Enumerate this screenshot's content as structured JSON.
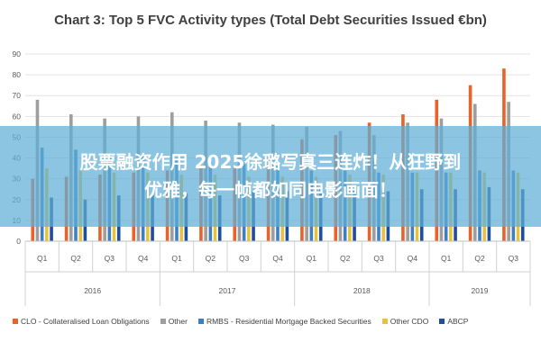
{
  "chart_data": {
    "type": "bar",
    "title": "Chart 3: Top 5 FVC Activity types (Total Debt Securities Issued €bn)",
    "quarters": [
      "Q1",
      "Q2",
      "Q3",
      "Q4",
      "Q1",
      "Q2",
      "Q3",
      "Q4",
      "Q1",
      "Q2",
      "Q3",
      "Q4",
      "Q1",
      "Q2",
      "Q3"
    ],
    "years": [
      {
        "label": "2016",
        "count": 4
      },
      {
        "label": "2017",
        "count": 4
      },
      {
        "label": "2018",
        "count": 4
      },
      {
        "label": "2019",
        "count": 3
      }
    ],
    "ylim": [
      0,
      90
    ],
    "yticks": [
      0,
      10,
      20,
      30,
      40,
      50,
      60,
      70,
      80,
      90
    ],
    "grid": true,
    "legend_position": "bottom",
    "series": [
      {
        "name": "CLO - Collateralised Loan Obligations",
        "color": "#E8622A",
        "values": [
          30,
          31,
          32,
          33,
          34,
          35,
          36,
          37,
          49,
          51,
          57,
          61,
          68,
          75,
          83
        ]
      },
      {
        "name": "Other",
        "color": "#9E9E9E",
        "values": [
          68,
          61,
          59,
          60,
          62,
          58,
          57,
          56,
          55,
          53,
          51,
          57,
          59,
          66,
          67
        ]
      },
      {
        "name": "RMBS - Residential Mortgage Backed Securities",
        "color": "#3D7FC4",
        "values": [
          45,
          44,
          42,
          42,
          40,
          38,
          37,
          36,
          34,
          34,
          33,
          33,
          33,
          34,
          34
        ]
      },
      {
        "name": "Other CDO",
        "color": "#E9C23A",
        "values": [
          35,
          34,
          33,
          33,
          32,
          32,
          31,
          31,
          31,
          32,
          32,
          33,
          33,
          33,
          33
        ]
      },
      {
        "name": "ABCP",
        "color": "#1F4E9A",
        "values": [
          21,
          20,
          22,
          22,
          23,
          22,
          24,
          24,
          25,
          25,
          24,
          25,
          25,
          26,
          25
        ]
      }
    ]
  },
  "overlay": {
    "line1": "股票融资作用 2025徐璐写真三连炸！从狂野到",
    "line2": "优雅，每一帧都如同电影画面！"
  }
}
